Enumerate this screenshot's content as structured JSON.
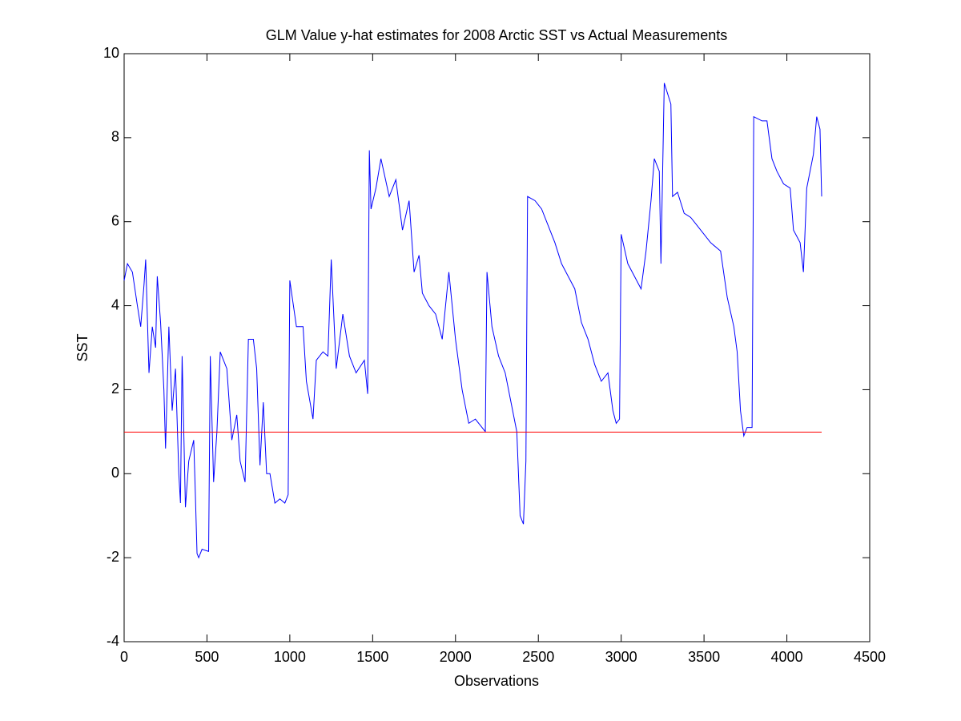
{
  "chart_data": {
    "type": "line",
    "title": "GLM Value y-hat estimates for 2008 Arctic SST vs Actual Measurements",
    "x_label": "Observations",
    "y_label": "SST",
    "xlim": [
      0,
      4500
    ],
    "ylim": [
      -4,
      10
    ],
    "xticks": [
      0,
      500,
      1000,
      1500,
      2000,
      2500,
      3000,
      3500,
      4000,
      4500
    ],
    "yticks": [
      -4,
      -2,
      0,
      2,
      4,
      6,
      8,
      10
    ],
    "grid": false,
    "series": [
      {
        "color": "#0000ff",
        "x": [
          0,
          20,
          50,
          80,
          100,
          120,
          130,
          150,
          170,
          190,
          200,
          220,
          240,
          250,
          270,
          290,
          310,
          330,
          340,
          350,
          370,
          390,
          420,
          430,
          440,
          450,
          470,
          510,
          520,
          540,
          560,
          580,
          620,
          650,
          680,
          700,
          730,
          750,
          780,
          800,
          820,
          840,
          860,
          880,
          910,
          940,
          970,
          990,
          1000,
          1040,
          1080,
          1100,
          1140,
          1160,
          1200,
          1230,
          1250,
          1280,
          1320,
          1360,
          1400,
          1450,
          1470,
          1480,
          1490,
          1520,
          1550,
          1600,
          1640,
          1680,
          1720,
          1750,
          1780,
          1800,
          1840,
          1880,
          1920,
          1960,
          2000,
          2040,
          2080,
          2120,
          2160,
          2180,
          2190,
          2220,
          2260,
          2300,
          2340,
          2370,
          2390,
          2410,
          2425,
          2435,
          2480,
          2520,
          2560,
          2600,
          2640,
          2680,
          2720,
          2760,
          2800,
          2840,
          2880,
          2920,
          2950,
          2970,
          2990,
          3000,
          3040,
          3080,
          3120,
          3150,
          3180,
          3200,
          3230,
          3240,
          3260,
          3300,
          3310,
          3340,
          3380,
          3420,
          3480,
          3540,
          3600,
          3640,
          3680,
          3700,
          3720,
          3740,
          3760,
          3790,
          3800,
          3850,
          3880,
          3910,
          3940,
          3980,
          4020,
          4040,
          4080,
          4100,
          4120,
          4160,
          4180,
          4200,
          4210
        ],
        "values": [
          4.6,
          5.0,
          4.8,
          4.0,
          3.5,
          4.5,
          5.1,
          2.4,
          3.5,
          3.0,
          4.7,
          3.6,
          2.0,
          0.6,
          3.5,
          1.5,
          2.5,
          0.0,
          -0.7,
          2.8,
          -0.8,
          0.3,
          0.8,
          -0.5,
          -1.9,
          -2.0,
          -1.8,
          -1.85,
          2.8,
          -0.2,
          1.0,
          2.9,
          2.5,
          0.8,
          1.4,
          0.3,
          -0.2,
          3.2,
          3.2,
          2.5,
          0.2,
          1.7,
          0.0,
          0.0,
          -0.7,
          -0.6,
          -0.7,
          -0.5,
          4.6,
          3.5,
          3.5,
          2.2,
          1.3,
          2.7,
          2.9,
          2.8,
          5.1,
          2.5,
          3.8,
          2.8,
          2.4,
          2.7,
          1.9,
          7.7,
          6.3,
          6.8,
          7.5,
          6.6,
          7.0,
          5.8,
          6.5,
          4.8,
          5.2,
          4.3,
          4.0,
          3.8,
          3.2,
          4.8,
          3.2,
          2.0,
          1.2,
          1.3,
          1.1,
          1.0,
          4.8,
          3.5,
          2.8,
          2.4,
          1.6,
          1.0,
          -1.0,
          -1.2,
          0.3,
          6.6,
          6.5,
          6.3,
          5.9,
          5.5,
          5.0,
          4.7,
          4.4,
          3.6,
          3.2,
          2.6,
          2.2,
          2.4,
          1.5,
          1.2,
          1.3,
          5.7,
          5.0,
          4.7,
          4.4,
          5.3,
          6.5,
          7.5,
          7.2,
          5.0,
          9.3,
          8.8,
          6.6,
          6.7,
          6.2,
          6.1,
          5.8,
          5.5,
          5.3,
          4.2,
          3.5,
          2.9,
          1.5,
          0.9,
          1.1,
          1.1,
          8.5,
          8.4,
          8.4,
          7.5,
          7.2,
          6.9,
          6.8,
          5.8,
          5.5,
          4.8,
          6.8,
          7.6,
          8.5,
          8.2,
          6.6
        ]
      },
      {
        "color": "#ff0000",
        "x": [
          0,
          4210
        ],
        "values": [
          0.99,
          0.99
        ]
      }
    ]
  }
}
